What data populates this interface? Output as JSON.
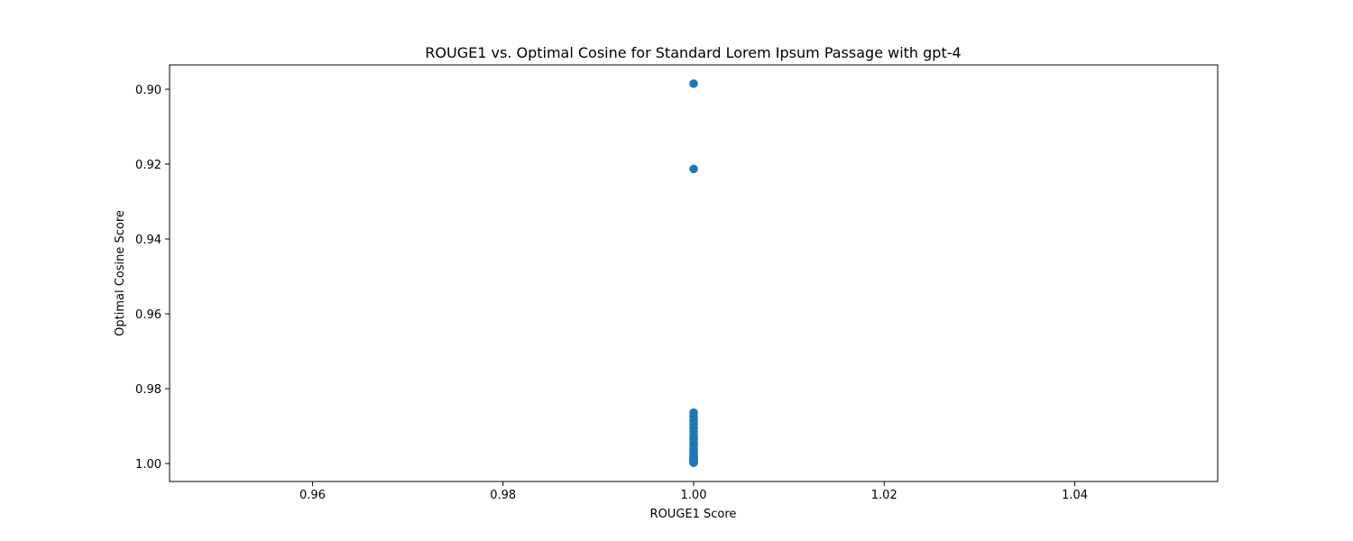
{
  "chart_data": {
    "type": "scatter",
    "title": "ROUGE1 vs. Optimal Cosine for Standard Lorem Ipsum Passage with gpt-4",
    "xlabel": "ROUGE1 Score",
    "ylabel": "Optimal Cosine Score",
    "xlim": [
      0.945,
      1.055
    ],
    "ylim": [
      1.0048,
      0.8935
    ],
    "y_inverted": true,
    "x_ticks": [
      0.96,
      0.98,
      1.0,
      1.02,
      1.04
    ],
    "x_tick_labels": [
      "0.96",
      "0.98",
      "1.00",
      "1.02",
      "1.04"
    ],
    "y_ticks": [
      0.9,
      0.92,
      0.94,
      0.96,
      0.98,
      1.0
    ],
    "y_tick_labels": [
      "0.90",
      "0.92",
      "0.94",
      "0.96",
      "0.98",
      "1.00"
    ],
    "grid": false,
    "series": [
      {
        "color": "#1f77b4",
        "x": [
          1.0,
          1.0,
          1.0,
          1.0,
          1.0,
          1.0,
          1.0,
          1.0,
          1.0,
          1.0,
          1.0,
          1.0,
          1.0,
          1.0,
          1.0,
          1.0,
          1.0,
          1.0,
          1.0,
          1.0,
          1.0,
          1.0,
          1.0,
          1.0,
          1.0,
          1.0,
          1.0,
          1.0
        ],
        "y": [
          0.8985,
          0.9213,
          0.9864,
          0.9875,
          0.9885,
          0.9895,
          0.9905,
          0.9915,
          0.9925,
          0.9935,
          0.9945,
          0.9952,
          0.996,
          0.9965,
          0.997,
          0.9974,
          0.9978,
          0.9981,
          0.9984,
          0.9986,
          0.9988,
          0.999,
          0.9992,
          0.9994,
          0.9995,
          0.9996,
          0.9997,
          0.9998
        ]
      }
    ]
  }
}
